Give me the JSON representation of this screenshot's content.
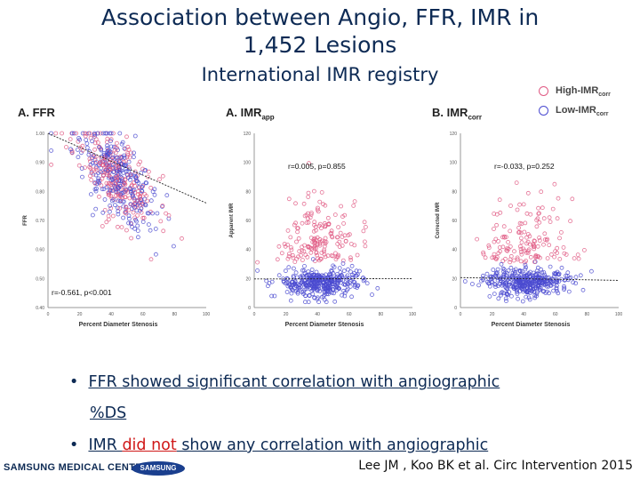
{
  "header": {
    "title_line1": "Association between Angio, FFR, IMR in",
    "title_line2": "1,452 Lesions",
    "subtitle": "International IMR registry"
  },
  "legend": {
    "high": {
      "label": "High-IMR",
      "sub": "corr",
      "color": "#e05a84"
    },
    "low": {
      "label": "Low-IMR",
      "sub": "corr",
      "color": "#4a4ad0"
    }
  },
  "panels": {
    "ffr": {
      "title": "A. FFR"
    },
    "imr_app": {
      "title": "A. IMR",
      "sub": "app"
    },
    "imr_corr": {
      "title": "B. IMR",
      "sub": "corr"
    }
  },
  "bullets": {
    "b1_line1": "FFR showed significant correlation with angiographic",
    "b1_line2": "%DS",
    "b2_pre": "IMR ",
    "b2_red": "did not",
    "b2_post": " show any correlation with angiographic"
  },
  "footer": {
    "left": "SAMSUNG MEDICAL CENTER",
    "logo": "SAMSUNG",
    "citation": "Lee JM , Koo BK et al. Circ Intervention 2015"
  },
  "chart_data": [
    {
      "type": "scatter",
      "title": "A. FFR",
      "xlabel": "Percent Diameter Stenosis",
      "ylabel": "FFR",
      "xlim": [
        0,
        100
      ],
      "ylim": [
        0.4,
        1.0
      ],
      "x_ticks": [
        "0",
        "20",
        "40",
        "60",
        "80",
        "100"
      ],
      "y_ticks": [
        "1.00",
        "0.90",
        "0.80",
        "0.70",
        "0.60",
        "0.50",
        "0.40"
      ],
      "annotation": "r=-0.561, p<0.001",
      "trend": [
        [
          0,
          1.0
        ],
        [
          100,
          0.76
        ]
      ],
      "series": [
        {
          "name": "High-IMRcorr",
          "color": "#e05a84"
        },
        {
          "name": "Low-IMRcorr",
          "color": "#4a4ad0"
        }
      ]
    },
    {
      "type": "scatter",
      "title": "A. IMRapp",
      "xlabel": "Percent Diameter Stenosis",
      "ylabel": "Apparent IMR",
      "xlim": [
        0,
        100
      ],
      "ylim": [
        0,
        125
      ],
      "x_ticks": [
        "0",
        "20",
        "40",
        "60",
        "80",
        "100"
      ],
      "y_ticks": [
        "120",
        "100",
        "80",
        "60",
        "40",
        "20",
        "0"
      ],
      "annotation": "r=0.005, p=0.855",
      "trend": [
        [
          0,
          20.5
        ],
        [
          100,
          20.8
        ]
      ],
      "series": [
        {
          "name": "High-IMRcorr",
          "color": "#e05a84"
        },
        {
          "name": "Low-IMRcorr",
          "color": "#4a4ad0"
        }
      ]
    },
    {
      "type": "scatter",
      "title": "B. IMRcorr",
      "xlabel": "Percent Diameter Stenosis",
      "ylabel": "Corrected IMR",
      "xlim": [
        0,
        100
      ],
      "ylim": [
        0,
        125
      ],
      "x_ticks": [
        "0",
        "20",
        "40",
        "60",
        "80",
        "100"
      ],
      "y_ticks": [
        "120",
        "100",
        "80",
        "60",
        "40",
        "20",
        "0"
      ],
      "annotation": "r=-0.033, p=0.252",
      "trend": [
        [
          0,
          21.5
        ],
        [
          100,
          19.5
        ]
      ],
      "series": [
        {
          "name": "High-IMRcorr",
          "color": "#e05a84"
        },
        {
          "name": "Low-IMRcorr",
          "color": "#4a4ad0"
        }
      ]
    }
  ]
}
